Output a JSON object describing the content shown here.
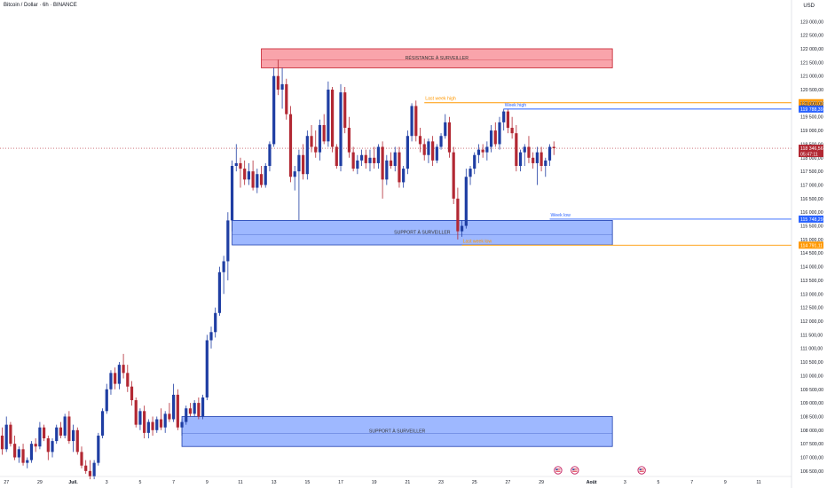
{
  "header": {
    "symbol": "Bitcoin / Dollar · 6h · BINANCE",
    "currency": "USD"
  },
  "chart_data": {
    "type": "candlestick",
    "title": "Bitcoin / Dollar · 6h · BINANCE",
    "ylim": [
      106300,
      123400
    ],
    "y_ticks": [
      106500,
      107000,
      107500,
      108000,
      108500,
      109000,
      109500,
      110000,
      110500,
      111000,
      111500,
      112000,
      112500,
      113000,
      113500,
      114000,
      114500,
      115000,
      115500,
      116000,
      116500,
      117000,
      117500,
      118000,
      118500,
      119000,
      119500,
      120000,
      120500,
      121000,
      121500,
      122000,
      122500,
      123000
    ],
    "x_ticks": [
      {
        "label": "27",
        "idx": 1
      },
      {
        "label": "29",
        "idx": 9
      },
      {
        "label": "Juil.",
        "idx": 17
      },
      {
        "label": "3",
        "idx": 25
      },
      {
        "label": "5",
        "idx": 33
      },
      {
        "label": "7",
        "idx": 41
      },
      {
        "label": "9",
        "idx": 49
      },
      {
        "label": "11",
        "idx": 57
      },
      {
        "label": "13",
        "idx": 65
      },
      {
        "label": "15",
        "idx": 73
      },
      {
        "label": "17",
        "idx": 81
      },
      {
        "label": "19",
        "idx": 89
      },
      {
        "label": "21",
        "idx": 97
      },
      {
        "label": "23",
        "idx": 105
      },
      {
        "label": "25",
        "idx": 113
      },
      {
        "label": "27",
        "idx": 121
      },
      {
        "label": "29",
        "idx": 129
      },
      {
        "label": "Août",
        "idx": 141
      },
      {
        "label": "3",
        "idx": 149
      },
      {
        "label": "5",
        "idx": 157
      },
      {
        "label": "7",
        "idx": 165
      },
      {
        "label": "9",
        "idx": 173
      },
      {
        "label": "11",
        "idx": 181
      }
    ],
    "candles": [
      [
        107800,
        108100,
        107100,
        107300
      ],
      [
        107300,
        108500,
        107200,
        108200
      ],
      [
        108200,
        108300,
        107400,
        107500
      ],
      [
        107500,
        107800,
        106900,
        107000
      ],
      [
        107000,
        107400,
        106800,
        107300
      ],
      [
        107300,
        107500,
        106700,
        106800
      ],
      [
        106800,
        107000,
        106600,
        106900
      ],
      [
        106900,
        107600,
        106800,
        107500
      ],
      [
        107500,
        107700,
        107200,
        107400
      ],
      [
        107400,
        108300,
        107300,
        108100
      ],
      [
        108100,
        108200,
        107600,
        107700
      ],
      [
        107700,
        107800,
        106900,
        107200
      ],
      [
        107200,
        107700,
        107000,
        107600
      ],
      [
        107600,
        108200,
        107500,
        108100
      ],
      [
        108100,
        108300,
        107700,
        107800
      ],
      [
        107800,
        108600,
        107700,
        108500
      ],
      [
        108500,
        108700,
        107500,
        107600
      ],
      [
        107600,
        108200,
        107200,
        108000
      ],
      [
        108000,
        108100,
        107100,
        107200
      ],
      [
        107200,
        107400,
        106600,
        106700
      ],
      [
        106700,
        106900,
        106400,
        106500
      ],
      [
        106500,
        106900,
        106200,
        106300
      ],
      [
        106300,
        106900,
        106200,
        106800
      ],
      [
        106800,
        107900,
        106700,
        107800
      ],
      [
        107800,
        108800,
        107700,
        108700
      ],
      [
        108700,
        109700,
        108600,
        109500
      ],
      [
        109500,
        110200,
        109300,
        110100
      ],
      [
        110100,
        110300,
        109500,
        109700
      ],
      [
        109700,
        110500,
        109500,
        110400
      ],
      [
        110400,
        110800,
        109900,
        110100
      ],
      [
        110100,
        110400,
        109400,
        109600
      ],
      [
        109600,
        109800,
        108900,
        109100
      ],
      [
        109100,
        109200,
        108100,
        108200
      ],
      [
        108200,
        108800,
        108000,
        108700
      ],
      [
        108700,
        108900,
        107700,
        107900
      ],
      [
        107900,
        108400,
        107700,
        108300
      ],
      [
        108300,
        108500,
        107800,
        108000
      ],
      [
        108000,
        108500,
        107900,
        108400
      ],
      [
        108400,
        108800,
        108000,
        108100
      ],
      [
        108100,
        108700,
        107900,
        108600
      ],
      [
        108600,
        109000,
        108300,
        108400
      ],
      [
        108400,
        109700,
        108300,
        109300
      ],
      [
        109300,
        109500,
        108000,
        108100
      ],
      [
        108100,
        108400,
        107800,
        108300
      ],
      [
        108300,
        108900,
        108200,
        108800
      ],
      [
        108800,
        109000,
        108500,
        108600
      ],
      [
        108600,
        109100,
        108500,
        109000
      ],
      [
        109000,
        109200,
        108400,
        108500
      ],
      [
        108500,
        109300,
        108400,
        109200
      ],
      [
        109200,
        111500,
        109100,
        111300
      ],
      [
        111300,
        111800,
        111000,
        111600
      ],
      [
        111600,
        112500,
        111400,
        112300
      ],
      [
        112300,
        114000,
        112200,
        113800
      ],
      [
        113800,
        114400,
        113000,
        114200
      ],
      [
        114200,
        116000,
        113500,
        115700
      ],
      [
        115700,
        117900,
        115300,
        117700
      ],
      [
        117700,
        118500,
        117500,
        117800
      ],
      [
        117800,
        118000,
        116900,
        117600
      ],
      [
        117600,
        117900,
        117000,
        117200
      ],
      [
        117200,
        117800,
        117000,
        117500
      ],
      [
        117500,
        117900,
        116800,
        116900
      ],
      [
        116900,
        117600,
        116700,
        117400
      ],
      [
        117400,
        117700,
        116900,
        117000
      ],
      [
        117000,
        117800,
        116900,
        117700
      ],
      [
        117700,
        118600,
        117500,
        118500
      ],
      [
        118500,
        121300,
        118400,
        121000
      ],
      [
        121000,
        121600,
        120300,
        120500
      ],
      [
        120500,
        121300,
        119800,
        120700
      ],
      [
        120700,
        120900,
        119400,
        119600
      ],
      [
        119600,
        119900,
        117100,
        117300
      ],
      [
        117300,
        117700,
        116800,
        117500
      ],
      [
        117500,
        118300,
        115700,
        118100
      ],
      [
        118100,
        118500,
        117200,
        117400
      ],
      [
        117400,
        119000,
        117200,
        118800
      ],
      [
        118800,
        119200,
        118200,
        118400
      ],
      [
        118400,
        119000,
        118000,
        118200
      ],
      [
        118200,
        119400,
        117900,
        119200
      ],
      [
        119200,
        119600,
        118500,
        118600
      ],
      [
        118600,
        120800,
        118400,
        120500
      ],
      [
        120500,
        120600,
        118200,
        118400
      ],
      [
        118400,
        118500,
        117600,
        117700
      ],
      [
        117700,
        120700,
        117500,
        120400
      ],
      [
        120400,
        120600,
        118900,
        119100
      ],
      [
        119100,
        119500,
        118000,
        118200
      ],
      [
        118200,
        118400,
        117500,
        117600
      ],
      [
        117600,
        118100,
        117400,
        117900
      ],
      [
        117900,
        118300,
        117700,
        118100
      ],
      [
        118100,
        118300,
        117600,
        117800
      ],
      [
        117800,
        118300,
        117500,
        118000
      ],
      [
        118000,
        118400,
        117600,
        117800
      ],
      [
        117800,
        118500,
        117600,
        118400
      ],
      [
        118400,
        118600,
        116500,
        117200
      ],
      [
        117200,
        118100,
        117000,
        117900
      ],
      [
        117900,
        118200,
        117600,
        117700
      ],
      [
        117700,
        118400,
        117500,
        118200
      ],
      [
        118200,
        118400,
        116900,
        117100
      ],
      [
        117100,
        117700,
        116900,
        117600
      ],
      [
        117600,
        119000,
        117400,
        118800
      ],
      [
        118800,
        120000,
        118600,
        119900
      ],
      [
        119900,
        120100,
        118600,
        118800
      ],
      [
        118800,
        119100,
        118200,
        118500
      ],
      [
        118500,
        118700,
        117900,
        118100
      ],
      [
        118100,
        118700,
        117800,
        118600
      ],
      [
        118600,
        118800,
        117700,
        117900
      ],
      [
        117900,
        118500,
        117800,
        118400
      ],
      [
        118400,
        118900,
        118300,
        118800
      ],
      [
        118800,
        119600,
        118700,
        119300
      ],
      [
        119300,
        119500,
        118000,
        118200
      ],
      [
        118200,
        118400,
        116300,
        116500
      ],
      [
        116500,
        116900,
        115000,
        115300
      ],
      [
        115300,
        115700,
        115100,
        115500
      ],
      [
        115500,
        117600,
        115400,
        117300
      ],
      [
        117300,
        117700,
        117000,
        117600
      ],
      [
        117600,
        118200,
        117400,
        118100
      ],
      [
        118100,
        118500,
        117800,
        118300
      ],
      [
        118300,
        118500,
        118000,
        118200
      ],
      [
        118200,
        118600,
        117900,
        118400
      ],
      [
        118400,
        119200,
        118200,
        119000
      ],
      [
        119000,
        119300,
        118400,
        118500
      ],
      [
        118500,
        119500,
        118300,
        119300
      ],
      [
        119300,
        119800,
        119000,
        119700
      ],
      [
        119700,
        119800,
        118900,
        119100
      ],
      [
        119100,
        119500,
        118700,
        118900
      ],
      [
        118900,
        119200,
        117500,
        117700
      ],
      [
        117700,
        118300,
        117500,
        118200
      ],
      [
        118200,
        118500,
        117700,
        118400
      ],
      [
        118400,
        118800,
        117800,
        118000
      ],
      [
        118000,
        118200,
        117600,
        117800
      ],
      [
        117800,
        118400,
        117000,
        118200
      ],
      [
        118200,
        118400,
        117500,
        117700
      ],
      [
        117700,
        118000,
        117300,
        117900
      ],
      [
        117900,
        118500,
        117700,
        118400
      ],
      [
        118400,
        118600,
        118100,
        118350
      ]
    ],
    "zones": [
      {
        "label": "RÉSISTANCE À SURVEILLER",
        "type": "resistance",
        "color": "#f23645",
        "start_idx": 62,
        "end_idx": 146,
        "y_top": 122000,
        "y_bottom": 121300
      },
      {
        "label": "SUPPORT À SURVEILLER",
        "type": "support",
        "color": "#2962ff",
        "start_idx": 55,
        "end_idx": 146,
        "y_top": 115700,
        "y_bottom": 114800
      },
      {
        "label": "SUPPORT À SURVEILLER",
        "type": "support",
        "color": "#2962ff",
        "start_idx": 43,
        "end_idx": 146,
        "y_top": 108500,
        "y_bottom": 107400
      }
    ],
    "levels": [
      {
        "label": "Last week high",
        "value": 120020.95,
        "color": "#ff9800",
        "start_idx": 101,
        "price_label": "120 020,95"
      },
      {
        "label": "Week high",
        "value": 119788.39,
        "color": "#2962ff",
        "start_idx": 120,
        "price_label": "119 788,39"
      },
      {
        "label": "Week low",
        "value": 115748.29,
        "color": "#2962ff",
        "start_idx": 131,
        "price_label": "115 748,29"
      },
      {
        "label": "Last week low",
        "value": 114791.11,
        "color": "#ff9800",
        "start_idx": 110,
        "price_label": "114 791,11"
      }
    ],
    "current_price": {
      "value": 118350,
      "label": "118 346,56",
      "countdown": "05:47:11",
      "color": "#b22833"
    },
    "event_markers": [
      {
        "idx": 133,
        "flag": "us-flag-icon"
      },
      {
        "idx": 137,
        "flag": "us-flag-icon"
      },
      {
        "idx": 153,
        "flag": "us-flag-icon"
      }
    ],
    "up_color": "#1f3ea3",
    "down_color": "#b22833"
  }
}
